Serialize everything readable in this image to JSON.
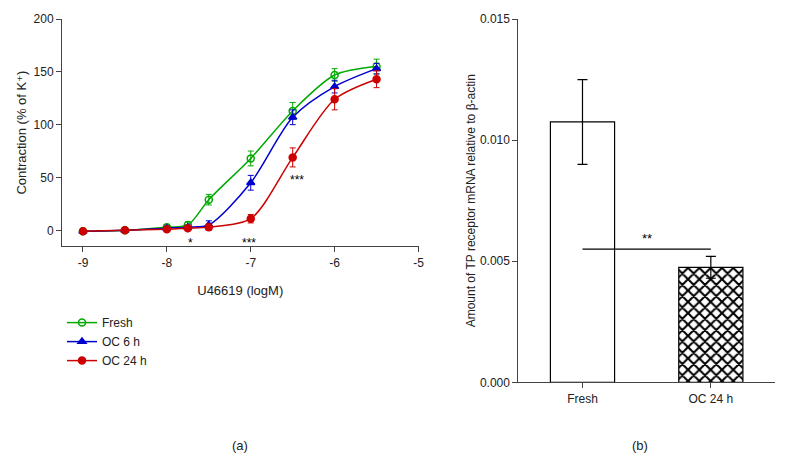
{
  "chart_data": [
    {
      "type": "line",
      "title": "(a)",
      "xlabel": "U46619 (logM)",
      "ylabel": "Contraction (% of K⁺)",
      "x": [
        -9,
        -8.5,
        -8,
        -7.75,
        -7.5,
        -7,
        -6.5,
        -6,
        -5.5
      ],
      "series": [
        {
          "name": "Fresh",
          "color": "#00aa00",
          "marker": "circle-open",
          "values": [
            -1,
            0,
            3,
            5,
            29,
            68,
            113,
            147,
            155
          ],
          "errors": [
            1,
            1,
            2,
            3,
            5,
            7,
            8,
            6,
            7
          ]
        },
        {
          "name": "OC 6 h",
          "color": "#0000cc",
          "marker": "triangle-up",
          "values": [
            -1,
            0,
            2,
            3,
            5,
            45,
            107,
            136,
            153
          ],
          "errors": [
            1,
            1,
            2,
            2,
            4,
            7,
            7,
            6,
            5
          ]
        },
        {
          "name": "OC 24 h",
          "color": "#cc0000",
          "marker": "circle",
          "values": [
            -1,
            0,
            1,
            2,
            3,
            11,
            69,
            124,
            143
          ],
          "errors": [
            1,
            1,
            1,
            2,
            3,
            4,
            9,
            10,
            8
          ]
        }
      ],
      "xlim": [
        -9.25,
        -5.0
      ],
      "xticks": [
        -9,
        -8,
        -7,
        -6,
        -5
      ],
      "ylim": [
        -15,
        200
      ],
      "yticks": [
        0,
        50,
        100,
        150,
        200
      ],
      "annotations": [
        {
          "text": "*",
          "x": -7.72,
          "y": -12
        },
        {
          "text": "***",
          "x": -7.02,
          "y": -12
        },
        {
          "text": "***",
          "x": -6.45,
          "y": 48
        }
      ],
      "grid": false,
      "legend": "below"
    },
    {
      "type": "bar",
      "title": "(b)",
      "ylabel": "Amount of TP receptor mRNA relative to β-actin",
      "categories": [
        "Fresh",
        "OC 24 h"
      ],
      "values": [
        0.01075,
        0.00475
      ],
      "errors": [
        0.00175,
        0.00045
      ],
      "color": "#ffffff",
      "ylim": [
        0.0,
        0.015
      ],
      "yticks": [
        {
          "value": 0.0,
          "label": "0.000"
        },
        {
          "value": 0.005,
          "label": "0.005"
        },
        {
          "value": 0.01,
          "label": "0.010"
        },
        {
          "value": 0.015,
          "label": "0.015"
        }
      ],
      "annotations": [
        {
          "text": "**",
          "y": 0.0055,
          "from": "Fresh",
          "to": "OC 24 h"
        }
      ],
      "grid": false
    }
  ]
}
